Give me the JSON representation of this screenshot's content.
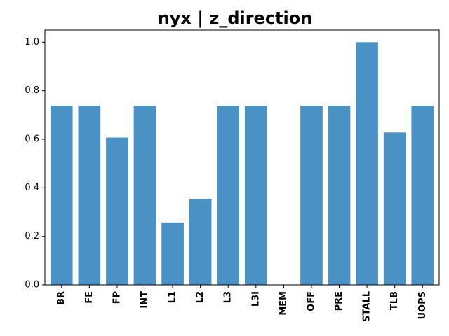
{
  "chart_data": {
    "type": "bar",
    "title": "nyx | z_direction",
    "xlabel": "",
    "ylabel": "",
    "categories": [
      "BR",
      "FE",
      "FP",
      "INT",
      "L1",
      "L2",
      "L3",
      "L3I",
      "MEM",
      "OFF",
      "PRE",
      "STALL",
      "TLB",
      "UOPS"
    ],
    "values": [
      0.738,
      0.738,
      0.607,
      0.738,
      0.257,
      0.355,
      0.738,
      0.738,
      0.0,
      0.738,
      0.738,
      1.0,
      0.628,
      0.738
    ],
    "ylim": [
      0,
      1.05
    ],
    "yticks": [
      "0.0",
      "0.2",
      "0.4",
      "0.6",
      "0.8",
      "1.0"
    ],
    "bar_color": "#4a92c5",
    "grid": false,
    "legend": "none"
  }
}
